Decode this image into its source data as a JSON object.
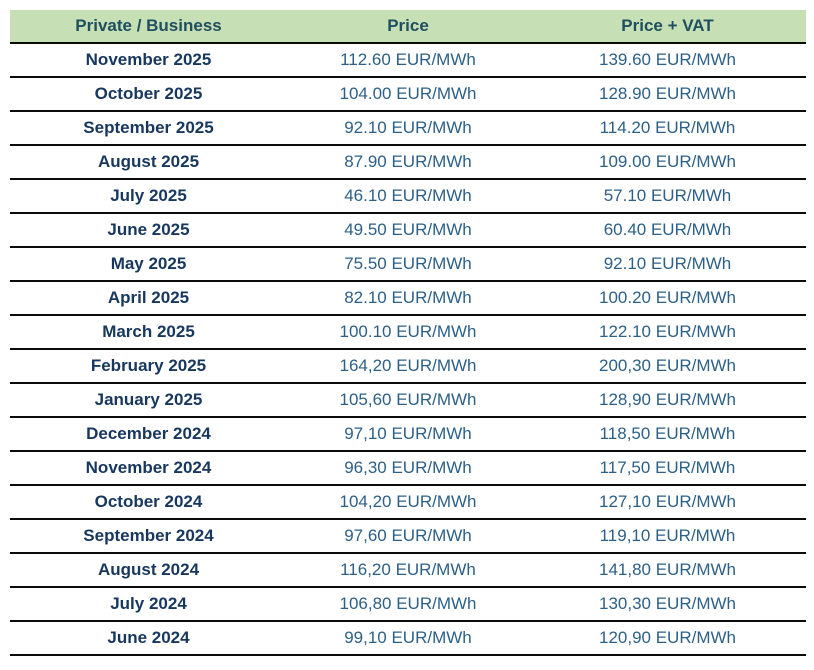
{
  "colors": {
    "header_background": "#c7dfb5",
    "header_text": "#1f4e5f",
    "month_text": "#17375e",
    "price_text": "#2d6087",
    "row_divider": "#0b0b0b",
    "page_background": "#ffffff"
  },
  "chart_data": {
    "type": "table",
    "columns": [
      "Private / Business",
      "Price",
      "Price + VAT"
    ],
    "unit": "EUR/MWh",
    "rows": [
      {
        "label": "November 2025",
        "price": "112.60 EUR/MWh",
        "price_vat": "139.60 EUR/MWh"
      },
      {
        "label": "October 2025",
        "price": "104.00 EUR/MWh",
        "price_vat": "128.90 EUR/MWh"
      },
      {
        "label": "September 2025",
        "price": "92.10 EUR/MWh",
        "price_vat": "114.20 EUR/MWh"
      },
      {
        "label": "August 2025",
        "price": "87.90 EUR/MWh",
        "price_vat": "109.00 EUR/MWh"
      },
      {
        "label": "July 2025",
        "price": "46.10 EUR/MWh",
        "price_vat": "57.10 EUR/MWh"
      },
      {
        "label": "June 2025",
        "price": "49.50 EUR/MWh",
        "price_vat": "60.40 EUR/MWh"
      },
      {
        "label": "May 2025",
        "price": "75.50 EUR/MWh",
        "price_vat": "92.10 EUR/MWh"
      },
      {
        "label": "April 2025",
        "price": "82.10 EUR/MWh",
        "price_vat": "100.20 EUR/MWh"
      },
      {
        "label": "March 2025",
        "price": "100.10 EUR/MWh",
        "price_vat": "122.10 EUR/MWh"
      },
      {
        "label": "February 2025",
        "price": "164,20 EUR/MWh",
        "price_vat": "200,30 EUR/MWh"
      },
      {
        "label": "January 2025",
        "price": "105,60 EUR/MWh",
        "price_vat": "128,90 EUR/MWh"
      },
      {
        "label": "December 2024",
        "price": "97,10 EUR/MWh",
        "price_vat": "118,50 EUR/MWh"
      },
      {
        "label": "November 2024",
        "price": "96,30 EUR/MWh",
        "price_vat": "117,50 EUR/MWh"
      },
      {
        "label": "October 2024",
        "price": "104,20 EUR/MWh",
        "price_vat": "127,10 EUR/MWh"
      },
      {
        "label": "September 2024",
        "price": "97,60 EUR/MWh",
        "price_vat": "119,10 EUR/MWh"
      },
      {
        "label": "August 2024",
        "price": "116,20 EUR/MWh",
        "price_vat": "141,80 EUR/MWh"
      },
      {
        "label": "July 2024",
        "price": "106,80 EUR/MWh",
        "price_vat": "130,30 EUR/MWh"
      },
      {
        "label": "June 2024",
        "price": "99,10 EUR/MWh",
        "price_vat": "120,90 EUR/MWh"
      }
    ]
  }
}
